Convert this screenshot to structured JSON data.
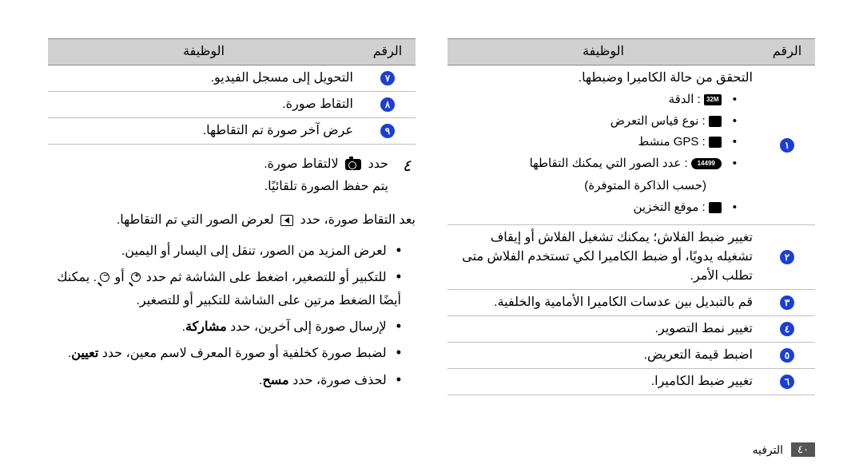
{
  "headers": {
    "number": "الرقم",
    "function": "الوظيفة"
  },
  "right_table": {
    "rows": [
      {
        "num_glyph": "١",
        "title": "التحقق من حالة الكاميرا وضبطها.",
        "bullets": [
          {
            "icon_label": "32M",
            "icon_type": "rect",
            "text": ": الدقة"
          },
          {
            "icon_label": "",
            "icon_type": "sq",
            "text": ": نوع قياس التعرض"
          },
          {
            "icon_label": "",
            "icon_type": "sq",
            "text": ": GPS منشط"
          },
          {
            "icon_label": "14499",
            "icon_type": "wide",
            "text": ": عدد الصور التي يمكنك التقاطها"
          },
          {
            "extra_line": "(حسب الذاكرة المتوفرة)"
          },
          {
            "icon_label": "",
            "icon_type": "sq",
            "text": ": موقع التخزين"
          }
        ]
      },
      {
        "num_glyph": "٢",
        "text": "تغيير ضبط الفلاش؛ يمكنك تشغيل الفلاش أو إيقاف تشغيله يدويًا، أو ضبط الكاميرا لكي تستخدم الفلاش متى تطلب الأمر."
      },
      {
        "num_glyph": "٣",
        "text": "قم بالتبديل بين عدسات الكاميرا الأمامية والخلفية."
      },
      {
        "num_glyph": "٤",
        "text": "تغيير نمط التصوير."
      },
      {
        "num_glyph": "٥",
        "text": "اضبط قيمة التعريض."
      },
      {
        "num_glyph": "٦",
        "text": "تغيير ضبط الكاميرا."
      }
    ]
  },
  "left_table": {
    "rows": [
      {
        "num_glyph": "٧",
        "text": "التحويل إلى مسجل الفيديو."
      },
      {
        "num_glyph": "٨",
        "text": "التقاط صورة."
      },
      {
        "num_glyph": "٩",
        "text": "عرض آخر صورة تم التقاطها."
      }
    ]
  },
  "step": {
    "num_glyph": "٤",
    "line1": "حدد ",
    "after_icon": " لالتقاط صورة.",
    "line2": "يتم حفظ الصورة تلقائيًا."
  },
  "after_text": {
    "lead": "بعد التقاط صورة، حدد ",
    "after_icon": " لعرض الصور التي تم التقاطها.",
    "bullets": [
      "لعرض المزيد من الصور، تنقل إلى اليسار أو اليمين.",
      "للتكبير أو للتصغير، اضغط على الشاشة ثم حدد __ZOOMIN__ أو __ZOOMOUT__. يمكنك أيضًا الضغط مرتين على الشاشة للتكبير أو للتصغير.",
      "لإرسال صورة إلى آخرين، حدد __BOLD__مشاركة__END__.",
      "لضبط صورة كخلفية أو صورة المعرف لاسم معين، حدد __BOLD__تعيين__END__.",
      "لحذف صورة، حدد __BOLD__مسح__END__."
    ]
  },
  "footer": {
    "page_num": "٤٠",
    "section": "الترفيه"
  },
  "colors": {
    "circle": "#1a3fd6",
    "header_bg": "#d0d0d0",
    "border": "#bfbfbf"
  }
}
